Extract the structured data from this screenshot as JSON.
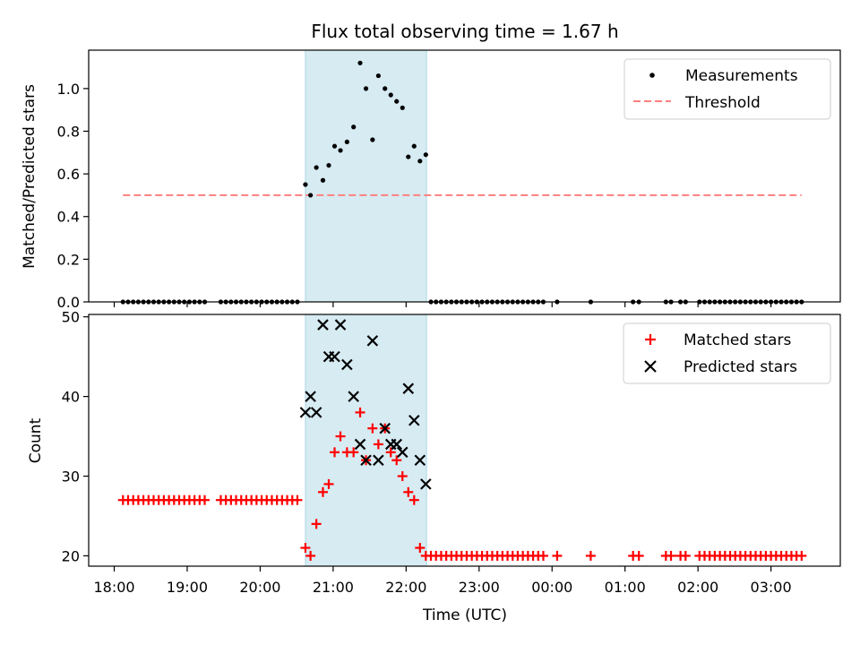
{
  "figure_title": "Flux total observing time = 1.67 h",
  "x_axis": {
    "label": "Time (UTC)",
    "ticks": [
      {
        "t": 18,
        "label": "18:00"
      },
      {
        "t": 19,
        "label": "19:00"
      },
      {
        "t": 20,
        "label": "20:00"
      },
      {
        "t": 21,
        "label": "21:00"
      },
      {
        "t": 22,
        "label": "22:00"
      },
      {
        "t": 23,
        "label": "23:00"
      },
      {
        "t": 24,
        "label": "00:00"
      },
      {
        "t": 25,
        "label": "01:00"
      },
      {
        "t": 26,
        "label": "02:00"
      },
      {
        "t": 27,
        "label": "03:00"
      }
    ],
    "range_hours": [
      17.65,
      27.95
    ]
  },
  "chart_data": [
    {
      "type": "scatter",
      "ylabel": "Matched/Predicted stars",
      "ylim": [
        0,
        1.18
      ],
      "yticks": [
        {
          "v": 0.0,
          "label": "0.0"
        },
        {
          "v": 0.2,
          "label": "0.2"
        },
        {
          "v": 0.4,
          "label": "0.4"
        },
        {
          "v": 0.6,
          "label": "0.6"
        },
        {
          "v": 0.8,
          "label": "0.8"
        },
        {
          "v": 1.0,
          "label": "1.0"
        }
      ],
      "legend_position": "top-right",
      "colors": {
        "measurements": "#000000",
        "threshold": "#ff7f7f",
        "highlight": "#add8e6"
      },
      "highlight_span": {
        "start": 20.62,
        "end": 22.28
      },
      "series": [
        {
          "name": "Measurements",
          "style": "dots",
          "points": [
            [
              18.12,
              0
            ],
            [
              18.19,
              0
            ],
            [
              18.26,
              0
            ],
            [
              18.33,
              0
            ],
            [
              18.4,
              0
            ],
            [
              18.47,
              0
            ],
            [
              18.54,
              0
            ],
            [
              18.61,
              0
            ],
            [
              18.68,
              0
            ],
            [
              18.75,
              0
            ],
            [
              18.82,
              0
            ],
            [
              18.89,
              0
            ],
            [
              18.96,
              0
            ],
            [
              19.03,
              0
            ],
            [
              19.1,
              0
            ],
            [
              19.17,
              0
            ],
            [
              19.24,
              0
            ],
            [
              19.46,
              0
            ],
            [
              19.53,
              0
            ],
            [
              19.6,
              0
            ],
            [
              19.67,
              0
            ],
            [
              19.74,
              0
            ],
            [
              19.81,
              0
            ],
            [
              19.88,
              0
            ],
            [
              19.95,
              0
            ],
            [
              20.02,
              0
            ],
            [
              20.09,
              0
            ],
            [
              20.16,
              0
            ],
            [
              20.23,
              0
            ],
            [
              20.3,
              0
            ],
            [
              20.37,
              0
            ],
            [
              20.44,
              0
            ],
            [
              20.51,
              0
            ],
            [
              20.62,
              0.55
            ],
            [
              20.69,
              0.5
            ],
            [
              20.77,
              0.63
            ],
            [
              20.86,
              0.57
            ],
            [
              20.94,
              0.64
            ],
            [
              21.02,
              0.73
            ],
            [
              21.1,
              0.71
            ],
            [
              21.19,
              0.75
            ],
            [
              21.28,
              0.82
            ],
            [
              21.37,
              1.12
            ],
            [
              21.45,
              1.0
            ],
            [
              21.54,
              0.76
            ],
            [
              21.62,
              1.06
            ],
            [
              21.71,
              1.0
            ],
            [
              21.79,
              0.97
            ],
            [
              21.87,
              0.94
            ],
            [
              21.95,
              0.91
            ],
            [
              22.03,
              0.68
            ],
            [
              22.11,
              0.73
            ],
            [
              22.19,
              0.66
            ],
            [
              22.27,
              0.69
            ],
            [
              22.34,
              0
            ],
            [
              22.41,
              0
            ],
            [
              22.48,
              0
            ],
            [
              22.55,
              0
            ],
            [
              22.62,
              0
            ],
            [
              22.69,
              0
            ],
            [
              22.76,
              0
            ],
            [
              22.83,
              0
            ],
            [
              22.9,
              0
            ],
            [
              22.97,
              0
            ],
            [
              23.04,
              0
            ],
            [
              23.11,
              0
            ],
            [
              23.18,
              0
            ],
            [
              23.25,
              0
            ],
            [
              23.32,
              0
            ],
            [
              23.39,
              0
            ],
            [
              23.46,
              0
            ],
            [
              23.53,
              0
            ],
            [
              23.6,
              0
            ],
            [
              23.67,
              0
            ],
            [
              23.74,
              0
            ],
            [
              23.81,
              0
            ],
            [
              23.88,
              0
            ],
            [
              24.07,
              0
            ],
            [
              24.53,
              0
            ],
            [
              25.11,
              0
            ],
            [
              25.19,
              0
            ],
            [
              25.56,
              0
            ],
            [
              25.63,
              0
            ],
            [
              25.76,
              0
            ],
            [
              25.83,
              0
            ],
            [
              26.02,
              0
            ],
            [
              26.09,
              0
            ],
            [
              26.16,
              0
            ],
            [
              26.23,
              0
            ],
            [
              26.3,
              0
            ],
            [
              26.37,
              0
            ],
            [
              26.44,
              0
            ],
            [
              26.51,
              0
            ],
            [
              26.58,
              0
            ],
            [
              26.65,
              0
            ],
            [
              26.72,
              0
            ],
            [
              26.79,
              0
            ],
            [
              26.86,
              0
            ],
            [
              26.93,
              0
            ],
            [
              27.0,
              0
            ],
            [
              27.07,
              0
            ],
            [
              27.14,
              0
            ],
            [
              27.21,
              0
            ],
            [
              27.28,
              0
            ],
            [
              27.35,
              0
            ],
            [
              27.42,
              0
            ]
          ]
        },
        {
          "name": "Threshold",
          "style": "dashed-line",
          "x": [
            18.12,
            27.42
          ],
          "y": [
            0.5,
            0.5
          ]
        }
      ]
    },
    {
      "type": "scatter",
      "ylabel": "Count",
      "ylim": [
        18.7,
        50.3
      ],
      "yticks": [
        {
          "v": 20,
          "label": "20"
        },
        {
          "v": 30,
          "label": "30"
        },
        {
          "v": 40,
          "label": "40"
        },
        {
          "v": 50,
          "label": "50"
        }
      ],
      "legend_position": "top-right",
      "colors": {
        "matched": "#ff0000",
        "predicted": "#000000",
        "highlight": "#add8e6"
      },
      "highlight_span": {
        "start": 20.62,
        "end": 22.28
      },
      "series": [
        {
          "name": "Matched stars",
          "marker": "plus",
          "points": [
            [
              18.12,
              27
            ],
            [
              18.19,
              27
            ],
            [
              18.26,
              27
            ],
            [
              18.33,
              27
            ],
            [
              18.4,
              27
            ],
            [
              18.47,
              27
            ],
            [
              18.54,
              27
            ],
            [
              18.61,
              27
            ],
            [
              18.68,
              27
            ],
            [
              18.75,
              27
            ],
            [
              18.82,
              27
            ],
            [
              18.89,
              27
            ],
            [
              18.96,
              27
            ],
            [
              19.03,
              27
            ],
            [
              19.1,
              27
            ],
            [
              19.17,
              27
            ],
            [
              19.24,
              27
            ],
            [
              19.46,
              27
            ],
            [
              19.53,
              27
            ],
            [
              19.6,
              27
            ],
            [
              19.67,
              27
            ],
            [
              19.74,
              27
            ],
            [
              19.81,
              27
            ],
            [
              19.88,
              27
            ],
            [
              19.95,
              27
            ],
            [
              20.02,
              27
            ],
            [
              20.09,
              27
            ],
            [
              20.16,
              27
            ],
            [
              20.23,
              27
            ],
            [
              20.3,
              27
            ],
            [
              20.37,
              27
            ],
            [
              20.44,
              27
            ],
            [
              20.51,
              27
            ],
            [
              20.62,
              21
            ],
            [
              20.69,
              20
            ],
            [
              20.77,
              24
            ],
            [
              20.86,
              28
            ],
            [
              20.94,
              29
            ],
            [
              21.02,
              33
            ],
            [
              21.1,
              35
            ],
            [
              21.19,
              33
            ],
            [
              21.28,
              33
            ],
            [
              21.37,
              38
            ],
            [
              21.45,
              32
            ],
            [
              21.54,
              36
            ],
            [
              21.62,
              34
            ],
            [
              21.71,
              36
            ],
            [
              21.79,
              33
            ],
            [
              21.87,
              32
            ],
            [
              21.95,
              30
            ],
            [
              22.03,
              28
            ],
            [
              22.11,
              27
            ],
            [
              22.19,
              21
            ],
            [
              22.27,
              20
            ],
            [
              22.34,
              20
            ],
            [
              22.41,
              20
            ],
            [
              22.48,
              20
            ],
            [
              22.55,
              20
            ],
            [
              22.62,
              20
            ],
            [
              22.69,
              20
            ],
            [
              22.76,
              20
            ],
            [
              22.83,
              20
            ],
            [
              22.9,
              20
            ],
            [
              22.97,
              20
            ],
            [
              23.04,
              20
            ],
            [
              23.11,
              20
            ],
            [
              23.18,
              20
            ],
            [
              23.25,
              20
            ],
            [
              23.32,
              20
            ],
            [
              23.39,
              20
            ],
            [
              23.46,
              20
            ],
            [
              23.53,
              20
            ],
            [
              23.6,
              20
            ],
            [
              23.67,
              20
            ],
            [
              23.74,
              20
            ],
            [
              23.81,
              20
            ],
            [
              23.88,
              20
            ],
            [
              24.07,
              20
            ],
            [
              24.53,
              20
            ],
            [
              25.11,
              20
            ],
            [
              25.19,
              20
            ],
            [
              25.56,
              20
            ],
            [
              25.63,
              20
            ],
            [
              25.76,
              20
            ],
            [
              25.83,
              20
            ],
            [
              26.02,
              20
            ],
            [
              26.09,
              20
            ],
            [
              26.16,
              20
            ],
            [
              26.23,
              20
            ],
            [
              26.3,
              20
            ],
            [
              26.37,
              20
            ],
            [
              26.44,
              20
            ],
            [
              26.51,
              20
            ],
            [
              26.58,
              20
            ],
            [
              26.65,
              20
            ],
            [
              26.72,
              20
            ],
            [
              26.79,
              20
            ],
            [
              26.86,
              20
            ],
            [
              26.93,
              20
            ],
            [
              27.0,
              20
            ],
            [
              27.07,
              20
            ],
            [
              27.14,
              20
            ],
            [
              27.21,
              20
            ],
            [
              27.28,
              20
            ],
            [
              27.35,
              20
            ],
            [
              27.42,
              20
            ]
          ]
        },
        {
          "name": "Predicted stars",
          "marker": "x",
          "points": [
            [
              20.62,
              38
            ],
            [
              20.69,
              40
            ],
            [
              20.77,
              38
            ],
            [
              20.86,
              49
            ],
            [
              20.94,
              45
            ],
            [
              21.02,
              45
            ],
            [
              21.1,
              49
            ],
            [
              21.19,
              44
            ],
            [
              21.28,
              40
            ],
            [
              21.37,
              34
            ],
            [
              21.45,
              32
            ],
            [
              21.54,
              47
            ],
            [
              21.62,
              32
            ],
            [
              21.71,
              36
            ],
            [
              21.79,
              34
            ],
            [
              21.87,
              34
            ],
            [
              21.95,
              33
            ],
            [
              22.03,
              41
            ],
            [
              22.11,
              37
            ],
            [
              22.19,
              32
            ],
            [
              22.27,
              29
            ]
          ]
        }
      ]
    }
  ]
}
